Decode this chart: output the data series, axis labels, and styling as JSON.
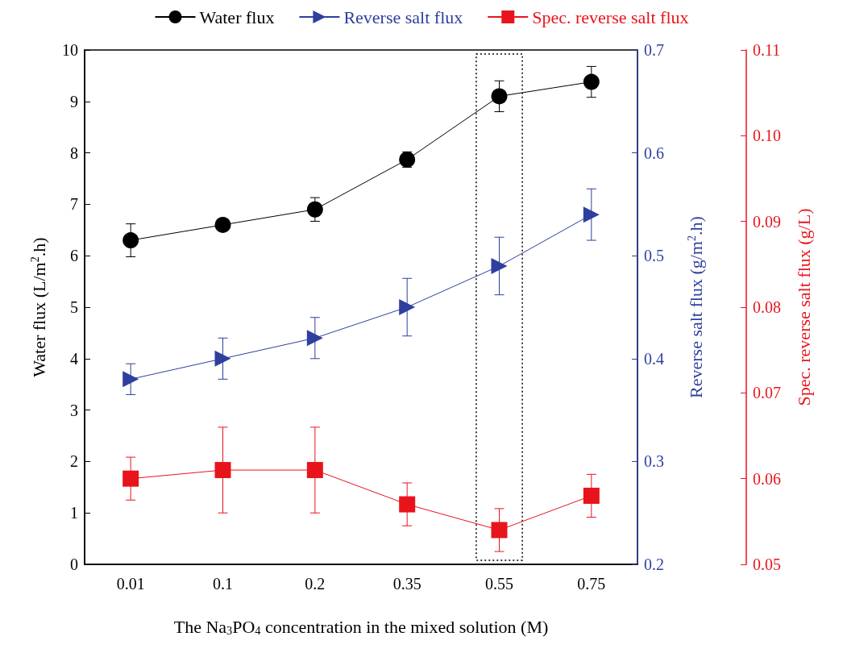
{
  "chart_data": {
    "type": "line",
    "xlabel": "The Na$_{3}$PO$_{4}$ concentration in the mixed solution (M)",
    "ylabel": "Water flux (L/m$^{2}$.h)",
    "y2label": "Reverse salt flux (g/m$^{2}$.h)",
    "y3label": "Spec. reverse salt flux (g/L)",
    "categories": [
      "0.01",
      "0.1",
      "0.2",
      "0.35",
      "0.55",
      "0.75"
    ],
    "series": [
      {
        "name": "Water flux",
        "color": "#000000",
        "marker": "circle",
        "values": [
          6.3,
          6.6,
          6.9,
          7.87,
          9.1,
          9.38
        ],
        "errors": [
          0.32,
          0.1,
          0.23,
          0.15,
          0.3,
          0.3
        ]
      },
      {
        "name": "Reverse salt flux",
        "color": "#2e3f9e",
        "marker": "triangle",
        "axis": "y2",
        "values": [
          0.38,
          0.4,
          0.42,
          0.45,
          0.49,
          0.54
        ],
        "errors": [
          0.015,
          0.02,
          0.02,
          0.028,
          0.028,
          0.025
        ]
      },
      {
        "name": "Spec. reverse salt flux",
        "color": "#e8141c",
        "marker": "square",
        "axis": "y3",
        "values": [
          0.06,
          0.061,
          0.061,
          0.057,
          0.054,
          0.058
        ],
        "errors": [
          0.0025,
          0.005,
          0.005,
          0.0025,
          0.0025,
          0.0025
        ]
      }
    ],
    "ylim": [
      0,
      10
    ],
    "yticks": [
      0,
      1,
      2,
      3,
      4,
      5,
      6,
      7,
      8,
      9,
      10
    ],
    "y2lim": [
      0.2,
      0.7
    ],
    "y2ticks": [
      0.2,
      0.3,
      0.4,
      0.5,
      0.6,
      0.7
    ],
    "y3lim": [
      0.05,
      0.11
    ],
    "y3ticks": [
      0.05,
      0.06,
      0.07,
      0.08,
      0.09,
      {
        "value": 0.1,
        "label": "0.10"
      },
      0.11
    ],
    "grid": false,
    "legend": "top",
    "line_style": "solid"
  }
}
